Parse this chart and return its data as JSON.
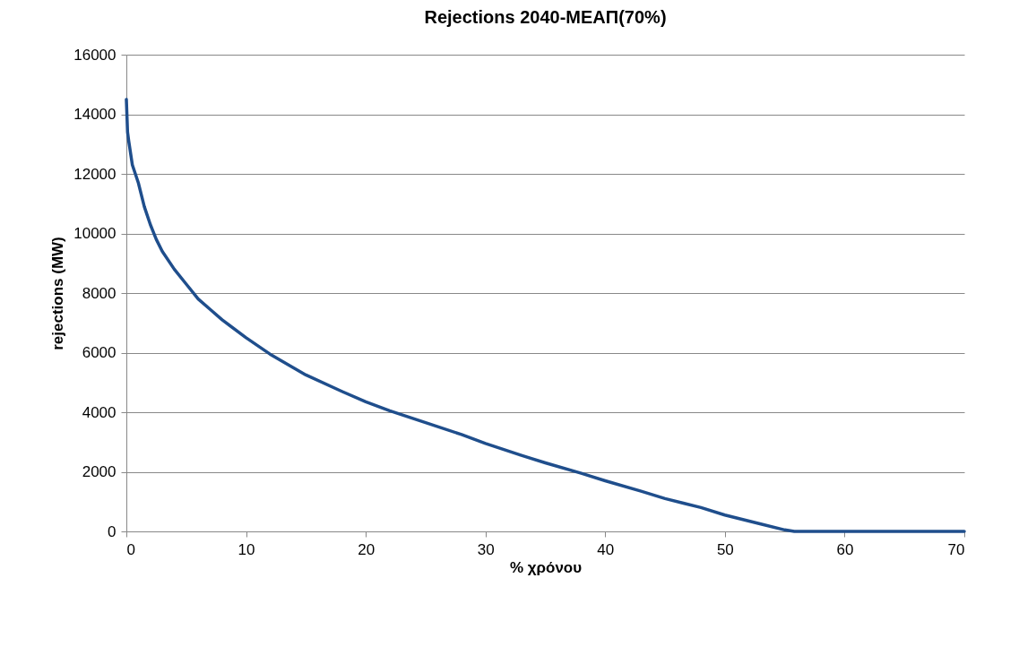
{
  "chart_data": {
    "type": "line",
    "title": "Rejections 2040-ΜΕΑΠ(70%)",
    "xlabel": "% χρόνου",
    "ylabel": "rejections (MW)",
    "series": [
      {
        "color": "#1f4e8c",
        "x": [
          0,
          0.1,
          0.2,
          0.5,
          1,
          1.5,
          2,
          2.5,
          3,
          4,
          5,
          6,
          7,
          8,
          10,
          12,
          15,
          18,
          20,
          22,
          25,
          28,
          30,
          33,
          35,
          38,
          40,
          43,
          45,
          48,
          50,
          53,
          55,
          55.8,
          60,
          65,
          70
        ],
        "values": [
          14500,
          13400,
          13100,
          12300,
          11700,
          10900,
          10300,
          9800,
          9400,
          8800,
          8300,
          7800,
          7450,
          7100,
          6500,
          5950,
          5250,
          4700,
          4350,
          4050,
          3650,
          3250,
          2950,
          2550,
          2300,
          1950,
          1700,
          1350,
          1100,
          800,
          550,
          250,
          50,
          0,
          0,
          0,
          0
        ]
      }
    ],
    "xlim": [
      0,
      70
    ],
    "xticks": [
      0,
      10,
      20,
      30,
      40,
      50,
      60,
      70
    ],
    "ylim": [
      0,
      16000
    ],
    "yticks": [
      0,
      2000,
      4000,
      6000,
      8000,
      10000,
      12000,
      14000,
      16000
    ],
    "grid": "y",
    "marker": "none",
    "line_style": "solid"
  }
}
